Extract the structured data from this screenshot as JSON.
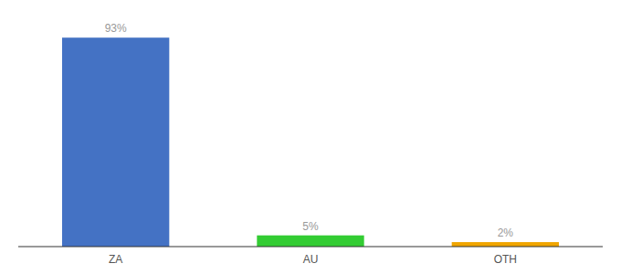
{
  "chart_data": {
    "type": "bar",
    "categories": [
      "ZA",
      "AU",
      "OTH"
    ],
    "values": [
      93,
      5,
      2
    ],
    "value_labels": [
      "93%",
      "5%",
      "2%"
    ],
    "colors": [
      "#4472c4",
      "#33cc33",
      "#f0a500"
    ],
    "ylim": [
      0,
      100
    ],
    "data_labels": true,
    "tick_labels": "x",
    "grid": false
  }
}
